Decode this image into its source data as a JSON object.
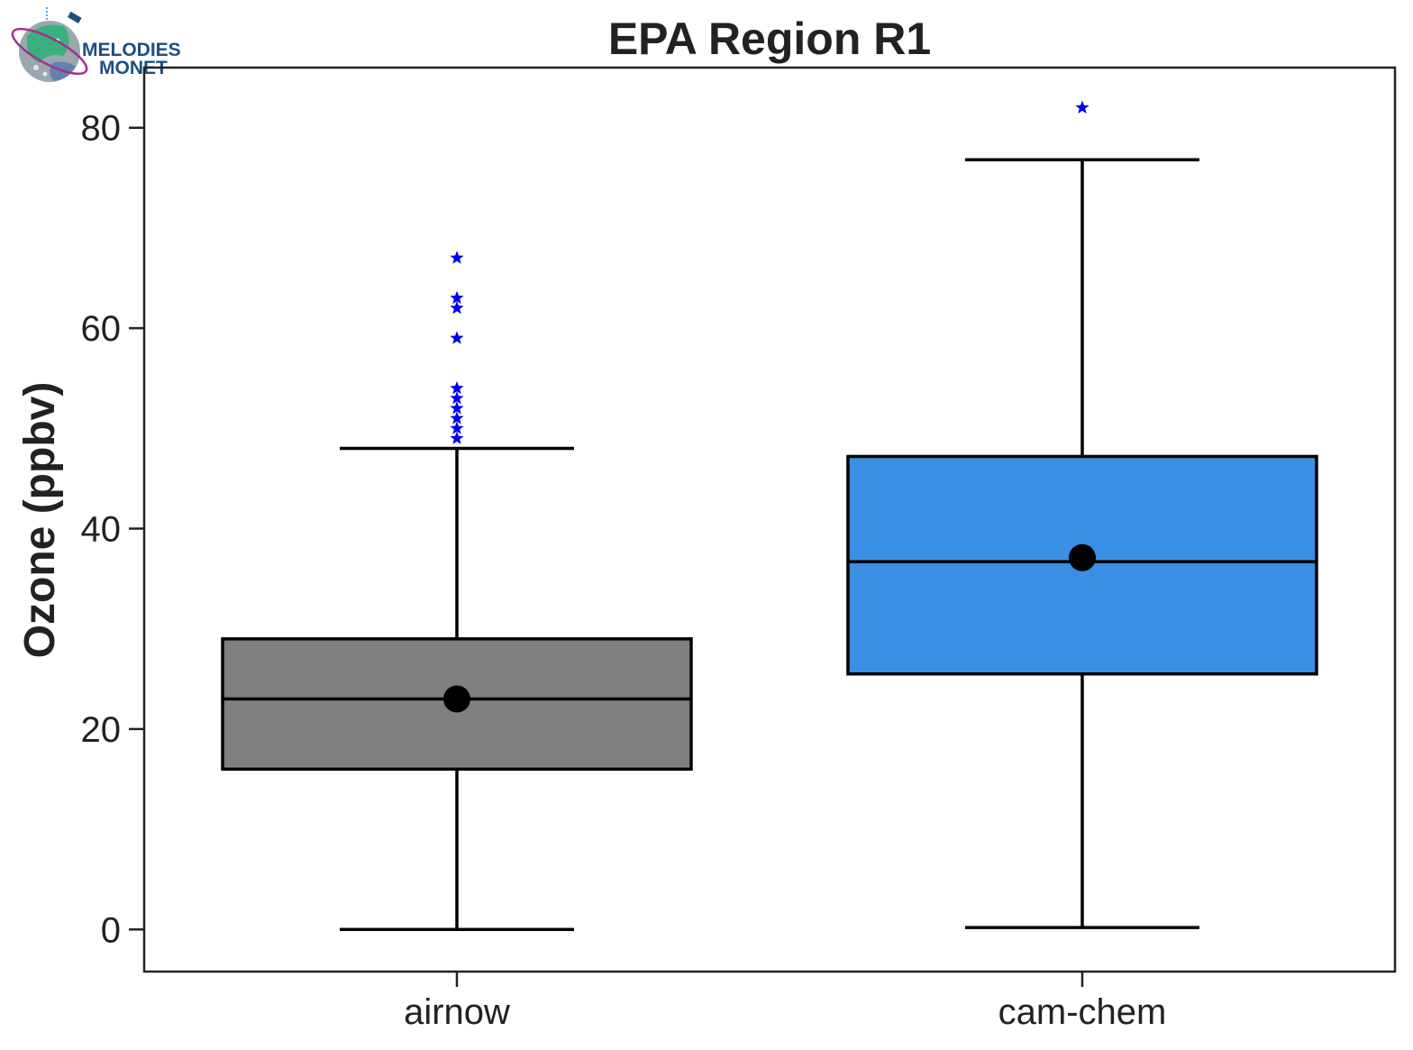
{
  "logo": {
    "line1": "MELODIES",
    "line2": "MONET"
  },
  "chart_data": {
    "type": "box",
    "title": "EPA Region R1",
    "xlabel": "",
    "ylabel": "Ozone (ppbv)",
    "ylim": [
      -4.2,
      86
    ],
    "yticks": [
      0,
      20,
      40,
      60,
      80
    ],
    "categories": [
      "airnow",
      "cam-chem"
    ],
    "series": [
      {
        "category": "airnow",
        "color": "#808080",
        "whisker_low": 0,
        "q1": 16,
        "median": 23,
        "q3": 29,
        "whisker_high": 48,
        "mean": 23,
        "outliers": [
          49,
          50,
          51,
          52,
          53,
          54,
          59,
          62,
          63,
          67
        ]
      },
      {
        "category": "cam-chem",
        "color": "#3a8fe3",
        "whisker_low": 0.2,
        "q1": 25.5,
        "median": 36.7,
        "q3": 47.2,
        "whisker_high": 76.8,
        "mean": 37.1,
        "outliers": [
          82
        ]
      }
    ],
    "outlier_color": "#0000ee",
    "outlier_marker": "star",
    "mean_marker_color": "#000000",
    "grid": false,
    "legend": "none"
  }
}
